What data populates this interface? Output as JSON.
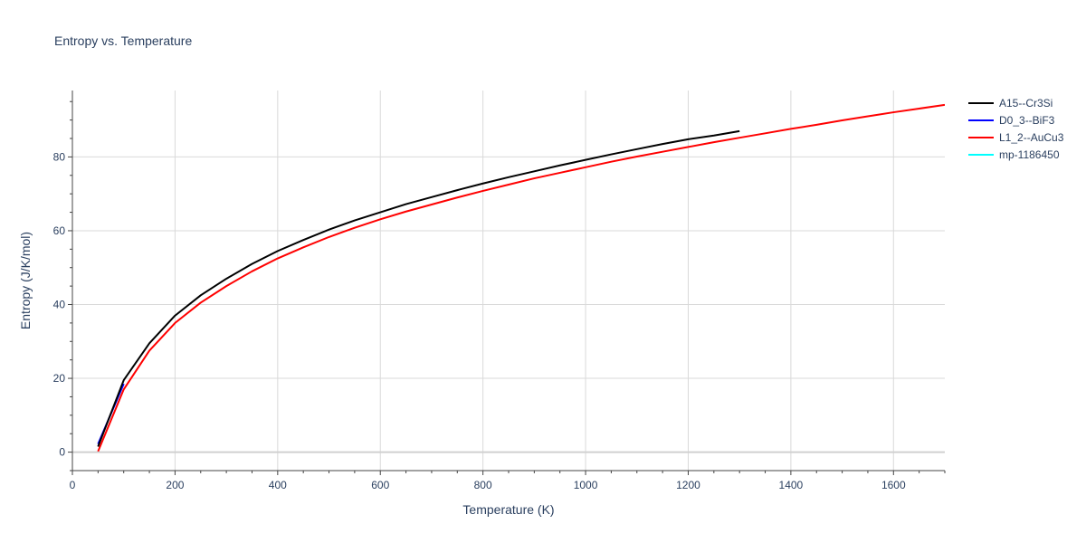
{
  "chart_data": {
    "type": "line",
    "title": "Entropy vs. Temperature",
    "xlabel": "Temperature (K)",
    "ylabel": "Entropy (J/K/mol)",
    "xlim": [
      0,
      1700
    ],
    "ylim": [
      -5,
      98
    ],
    "x_ticks": [
      0,
      200,
      400,
      600,
      800,
      1000,
      1200,
      1400,
      1600
    ],
    "y_ticks": [
      0,
      20,
      40,
      60,
      80
    ],
    "grid": true,
    "legend_position": "top-right",
    "series": [
      {
        "name": "A15--Cr3Si",
        "color": "#000000",
        "x": [
          50,
          100,
          150,
          200,
          250,
          300,
          350,
          400,
          450,
          500,
          550,
          600,
          650,
          700,
          750,
          800,
          850,
          900,
          950,
          1000,
          1050,
          1100,
          1150,
          1200,
          1250,
          1300
        ],
        "y": [
          1.5,
          19.5,
          29.5,
          37,
          42.5,
          47,
          51,
          54.5,
          57.5,
          60.3,
          62.8,
          65,
          67.2,
          69.1,
          71,
          72.8,
          74.5,
          76.1,
          77.7,
          79.2,
          80.7,
          82.1,
          83.5,
          84.8,
          85.8,
          87
        ]
      },
      {
        "name": "D0_3--BiF3",
        "color": "#0000ff",
        "x": [
          50,
          100
        ],
        "y": [
          2.2,
          18.5
        ]
      },
      {
        "name": "L1_2--AuCu3",
        "color": "#ff0000",
        "x": [
          50,
          100,
          150,
          200,
          250,
          300,
          350,
          400,
          450,
          500,
          550,
          600,
          650,
          700,
          750,
          800,
          850,
          900,
          950,
          1000,
          1050,
          1100,
          1150,
          1200,
          1250,
          1300,
          1350,
          1400,
          1450,
          1500,
          1550,
          1600,
          1650,
          1700
        ],
        "y": [
          0.2,
          17,
          27.5,
          35,
          40.5,
          45,
          49,
          52.5,
          55.5,
          58.3,
          60.8,
          63.1,
          65.2,
          67.1,
          69,
          70.8,
          72.5,
          74.2,
          75.7,
          77.2,
          78.7,
          80.1,
          81.4,
          82.7,
          84,
          85.2,
          86.4,
          87.6,
          88.7,
          89.9,
          91,
          92.1,
          93.1,
          94.1
        ]
      },
      {
        "name": "mp-1186450",
        "color": "#00ffff",
        "x": [],
        "y": []
      }
    ]
  }
}
